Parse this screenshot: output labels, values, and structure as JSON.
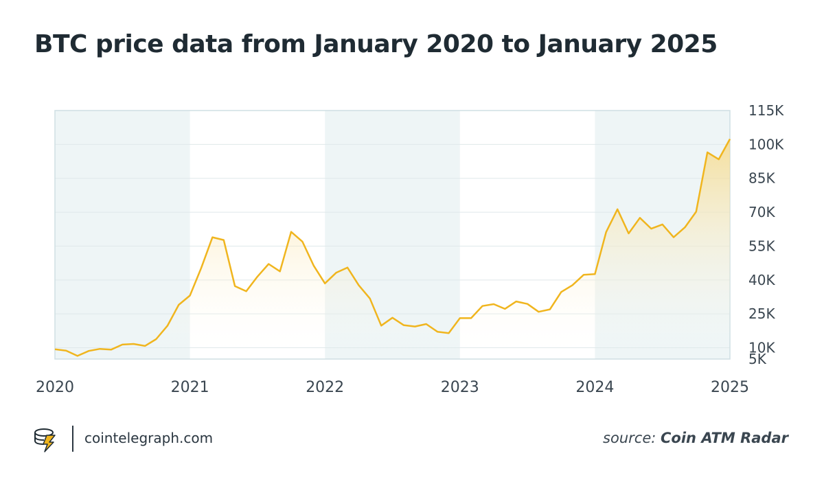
{
  "header": {
    "title": "BTC price data from January 2020 to January 2025"
  },
  "footer": {
    "site": "cointelegraph.com",
    "source_label": "source:",
    "source_name": "Coin ATM Radar"
  },
  "colors": {
    "line": "#f0b51e",
    "fill_top": "#f7d77e",
    "band": "#eef5f6",
    "grid": "#dfe8ea",
    "axis_text": "#3a4650"
  },
  "chart_data": {
    "type": "area",
    "title": "BTC price data from January 2020 to January 2025",
    "xlabel": "",
    "ylabel": "",
    "xlim": [
      2020,
      2025
    ],
    "ylim": [
      5000,
      115000
    ],
    "x_ticks": [
      "2020",
      "2021",
      "2022",
      "2023",
      "2024",
      "2025"
    ],
    "y_ticks": [
      {
        "value": 5000,
        "label": "5K"
      },
      {
        "value": 10000,
        "label": "10K"
      },
      {
        "value": 25000,
        "label": "25K"
      },
      {
        "value": 40000,
        "label": "40K"
      },
      {
        "value": 55000,
        "label": "55K"
      },
      {
        "value": 70000,
        "label": "70K"
      },
      {
        "value": 85000,
        "label": "85K"
      },
      {
        "value": 100000,
        "label": "100K"
      },
      {
        "value": 115000,
        "label": "115K"
      }
    ],
    "y_axis_position": "right",
    "grid": true,
    "legend": "none",
    "series": [
      {
        "points": [
          [
            2020.0,
            9300
          ],
          [
            2020.083,
            8700
          ],
          [
            2020.167,
            6400
          ],
          [
            2020.25,
            8600
          ],
          [
            2020.333,
            9500
          ],
          [
            2020.417,
            9200
          ],
          [
            2020.5,
            11400
          ],
          [
            2020.583,
            11700
          ],
          [
            2020.667,
            10800
          ],
          [
            2020.75,
            13800
          ],
          [
            2020.833,
            19700
          ],
          [
            2020.917,
            29000
          ],
          [
            2021.0,
            33100
          ],
          [
            2021.083,
            45200
          ],
          [
            2021.167,
            58900
          ],
          [
            2021.25,
            57700
          ],
          [
            2021.333,
            37300
          ],
          [
            2021.417,
            35000
          ],
          [
            2021.5,
            41500
          ],
          [
            2021.583,
            47100
          ],
          [
            2021.667,
            43800
          ],
          [
            2021.75,
            61300
          ],
          [
            2021.833,
            57000
          ],
          [
            2021.917,
            46300
          ],
          [
            2022.0,
            38500
          ],
          [
            2022.083,
            43200
          ],
          [
            2022.167,
            45500
          ],
          [
            2022.25,
            37700
          ],
          [
            2022.333,
            31800
          ],
          [
            2022.417,
            19800
          ],
          [
            2022.5,
            23300
          ],
          [
            2022.583,
            20000
          ],
          [
            2022.667,
            19400
          ],
          [
            2022.75,
            20500
          ],
          [
            2022.833,
            17100
          ],
          [
            2022.917,
            16500
          ],
          [
            2023.0,
            23100
          ],
          [
            2023.083,
            23100
          ],
          [
            2023.167,
            28500
          ],
          [
            2023.25,
            29300
          ],
          [
            2023.333,
            27200
          ],
          [
            2023.417,
            30500
          ],
          [
            2023.5,
            29400
          ],
          [
            2023.583,
            25900
          ],
          [
            2023.667,
            27000
          ],
          [
            2023.75,
            34700
          ],
          [
            2023.833,
            37700
          ],
          [
            2023.917,
            42300
          ],
          [
            2024.0,
            42600
          ],
          [
            2024.083,
            61200
          ],
          [
            2024.167,
            71300
          ],
          [
            2024.25,
            60600
          ],
          [
            2024.333,
            67500
          ],
          [
            2024.417,
            62700
          ],
          [
            2024.5,
            64600
          ],
          [
            2024.583,
            58900
          ],
          [
            2024.667,
            63300
          ],
          [
            2024.75,
            70200
          ],
          [
            2024.833,
            96500
          ],
          [
            2024.917,
            93400
          ],
          [
            2025.0,
            102400
          ]
        ]
      }
    ]
  }
}
